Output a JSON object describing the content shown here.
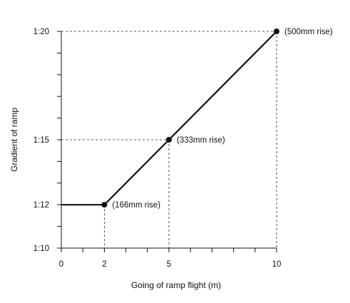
{
  "chart_data": {
    "type": "line",
    "title": "",
    "xlabel": "Going of ramp flight (m)",
    "ylabel": "Gradient of ramp",
    "xlim": [
      0,
      10
    ],
    "ylim": [
      10,
      20
    ],
    "x_tick_labels": [
      {
        "value": 0,
        "label": "0"
      },
      {
        "value": 2,
        "label": "2"
      },
      {
        "value": 5,
        "label": "5"
      },
      {
        "value": 10,
        "label": "10"
      }
    ],
    "y_tick_labels": [
      {
        "value": 10,
        "label": "1:10"
      },
      {
        "value": 12,
        "label": "1:12"
      },
      {
        "value": 15,
        "label": "1:15"
      },
      {
        "value": 20,
        "label": "1:20"
      }
    ],
    "series": [
      {
        "points": [
          {
            "x": 0,
            "y": 12
          },
          {
            "x": 2,
            "y": 12
          },
          {
            "x": 5,
            "y": 15
          },
          {
            "x": 10,
            "y": 20
          }
        ]
      }
    ],
    "annotations": [
      {
        "x": 2,
        "y": 12,
        "text": "(166mm rise)"
      },
      {
        "x": 5,
        "y": 15,
        "text": "(333mm rise)"
      },
      {
        "x": 10,
        "y": 20,
        "text": "(500mm rise)"
      }
    ],
    "grid": false
  }
}
